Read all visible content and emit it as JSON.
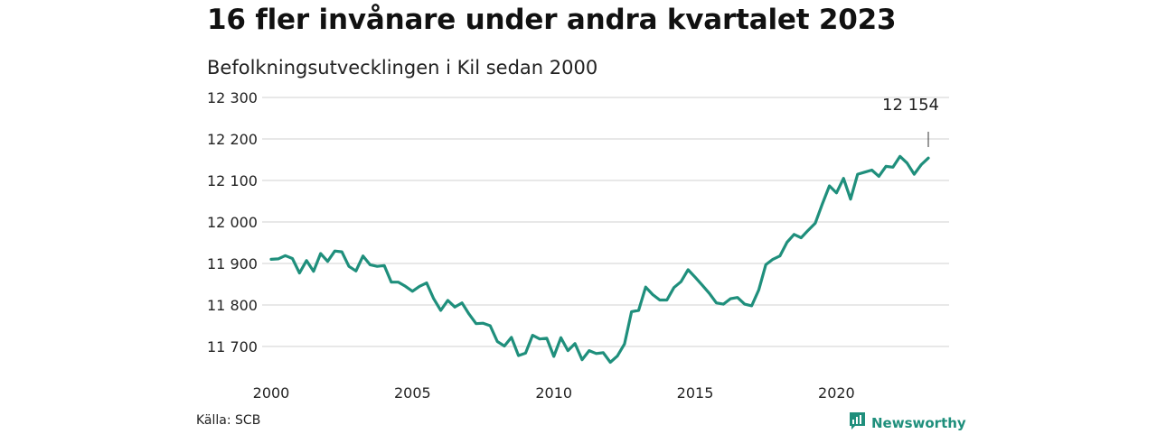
{
  "title": "16 fler invånare under andra kvartalet 2023",
  "subtitle": "Befolkningsutvecklingen i Kil sedan 2000",
  "source": "Källa: SCB",
  "brand": {
    "name": "Newsworthy",
    "color": "#1f8f7c",
    "icon": "newsworthy-logo-icon"
  },
  "colors": {
    "line": "#1f8f7c",
    "grid": "#d9d9d9"
  },
  "chart_data": {
    "type": "line",
    "title": "16 fler invånare under andra kvartalet 2023",
    "subtitle": "Befolkningsutvecklingen i Kil sedan 2000",
    "xlabel": "",
    "ylabel": "",
    "xlim": [
      2000,
      2024.5
    ],
    "ylim": [
      11650,
      12300
    ],
    "x_ticks": [
      2000,
      2005,
      2010,
      2015,
      2020
    ],
    "x_tick_labels": [
      "2000",
      "2005",
      "2010",
      "2015",
      "2020"
    ],
    "y_ticks": [
      11700,
      11800,
      11900,
      12000,
      12100,
      12200,
      12300
    ],
    "y_tick_labels": [
      "11 700",
      "11 800",
      "11 900",
      "12 000",
      "12 100",
      "12 200",
      "12 300"
    ],
    "grid": true,
    "legend": "none",
    "annotation": {
      "label": "12 154",
      "x": 2023.25,
      "y": 12154
    },
    "x": [
      2000,
      2000.25,
      2000.5,
      2000.75,
      2001,
      2001.25,
      2001.5,
      2001.75,
      2002,
      2002.25,
      2002.5,
      2002.75,
      2003,
      2003.25,
      2003.5,
      2003.75,
      2004,
      2004.25,
      2004.5,
      2004.75,
      2005,
      2005.25,
      2005.5,
      2005.75,
      2006,
      2006.25,
      2006.5,
      2006.75,
      2007,
      2007.25,
      2007.5,
      2007.75,
      2008,
      2008.25,
      2008.5,
      2008.75,
      2009,
      2009.25,
      2009.5,
      2009.75,
      2010,
      2010.25,
      2010.5,
      2010.75,
      2011,
      2011.25,
      2011.5,
      2011.75,
      2012,
      2012.25,
      2012.5,
      2012.75,
      2013,
      2013.25,
      2013.5,
      2013.75,
      2014,
      2014.25,
      2014.5,
      2014.75,
      2015,
      2015.25,
      2015.5,
      2015.75,
      2016,
      2016.25,
      2016.5,
      2016.75,
      2017,
      2017.25,
      2017.5,
      2017.75,
      2018,
      2018.25,
      2018.5,
      2018.75,
      2019,
      2019.25,
      2019.5,
      2019.75,
      2020,
      2020.25,
      2020.5,
      2020.75,
      2021,
      2021.25,
      2021.5,
      2021.75,
      2022,
      2022.25,
      2022.5,
      2022.75,
      2023,
      2023.25
    ],
    "series": [
      {
        "values": [
          11910,
          11911,
          11919,
          11912,
          11877,
          11907,
          11881,
          11924,
          11905,
          11930,
          11928,
          11893,
          11882,
          11918,
          11897,
          11893,
          11895,
          11855,
          11855,
          11845,
          11833,
          11845,
          11853,
          11815,
          11787,
          11811,
          11795,
          11805,
          11778,
          11755,
          11756,
          11750,
          11712,
          11701,
          11722,
          11678,
          11684,
          11727,
          11718,
          11720,
          11676,
          11721,
          11690,
          11707,
          11668,
          11690,
          11683,
          11685,
          11662,
          11677,
          11706,
          11784,
          11787,
          11843,
          11825,
          11812,
          11812,
          11842,
          11856,
          11885,
          11867,
          11848,
          11828,
          11805,
          11802,
          11815,
          11818,
          11802,
          11798,
          11836,
          11897,
          11910,
          11918,
          11951,
          11970,
          11962,
          11980,
          11997,
          12043,
          12087,
          12070,
          12105,
          12055,
          12115,
          12120,
          12125,
          12110,
          12134,
          12132,
          12158,
          12142,
          12115,
          12138,
          12154
        ]
      }
    ]
  }
}
